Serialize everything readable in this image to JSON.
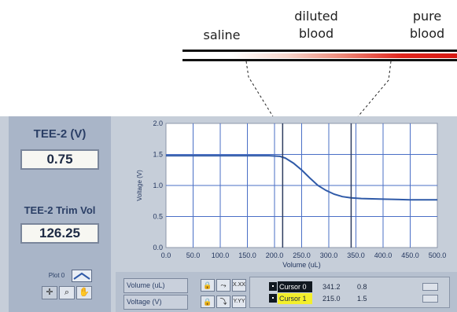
{
  "annotations": {
    "saline": "saline",
    "diluted_line1": "diluted",
    "diluted_line2": "blood",
    "pure_line1": "pure",
    "pure_line2": "blood"
  },
  "indicators": {
    "tee2_label": "TEE-2 (V)",
    "tee2_value": "0.75",
    "trim_label": "TEE-2 Trim Vol",
    "trim_value": "126.25"
  },
  "plot_legend": {
    "label": "Plot 0"
  },
  "axis_rows": [
    {
      "name": "Volume (uL)",
      "format_glyph": "X.XX"
    },
    {
      "name": "Voltage (V)",
      "format_glyph": "Y.YY"
    }
  ],
  "cursors": [
    {
      "name": "Cursor 0",
      "x": "341.2",
      "y": "0.8",
      "highlight": false
    },
    {
      "name": "Cursor 1",
      "x": "215.0",
      "y": "1.5",
      "highlight": true
    }
  ],
  "colors": {
    "trace": "#2f5aa8",
    "grid": "#4a6fc6",
    "plot_bg": "#ffffff",
    "cursor_line": "#2e3d60",
    "gradient_end": "#d81a14"
  },
  "chart_data": {
    "type": "line",
    "xlabel": "Volume (uL)",
    "ylabel": "Voltage (V)",
    "xlim": [
      0,
      500
    ],
    "ylim": [
      0,
      2
    ],
    "xticks": [
      "0.0",
      "50.0",
      "100.0",
      "150.0",
      "200.0",
      "250.0",
      "300.0",
      "350.0",
      "400.0",
      "450.0",
      "500.0"
    ],
    "yticks": [
      "0.0",
      "0.5",
      "1.0",
      "1.5",
      "2.0"
    ],
    "grid": true,
    "x": [
      0,
      50,
      100,
      150,
      190,
      210,
      220,
      235,
      250,
      265,
      280,
      295,
      310,
      325,
      341,
      360,
      400,
      450,
      500
    ],
    "values": [
      1.48,
      1.48,
      1.48,
      1.48,
      1.48,
      1.47,
      1.44,
      1.36,
      1.25,
      1.12,
      1.0,
      0.92,
      0.86,
      0.82,
      0.8,
      0.79,
      0.78,
      0.77,
      0.77
    ],
    "cursors_x": [
      341.2,
      215.0
    ]
  }
}
